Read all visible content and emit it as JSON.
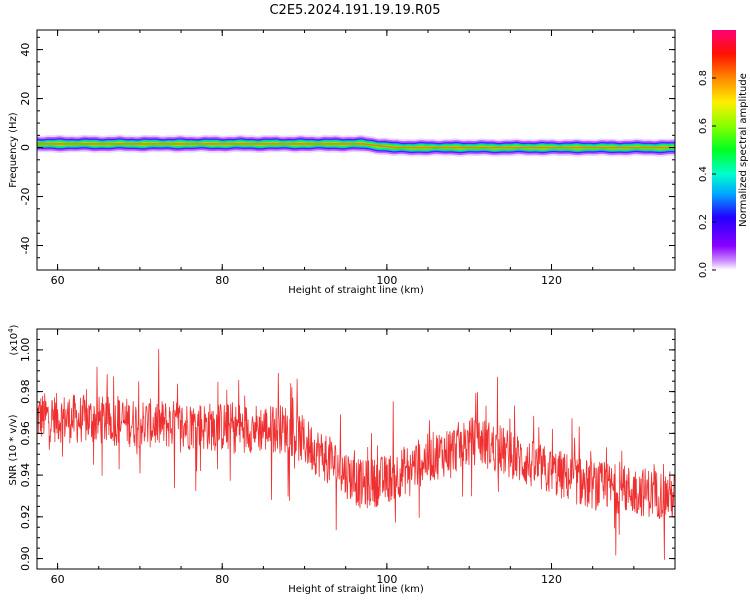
{
  "title": "C2E5.2024.191.19.19.R05",
  "colors": {
    "signal": "#f03030",
    "axis": "#000000"
  },
  "chart_data": [
    {
      "type": "heatmap",
      "xlabel": "Height of straight line (km)",
      "ylabel": "Frequency (Hz)",
      "xlim": [
        57.5,
        135
      ],
      "ylim": [
        -50,
        48
      ],
      "xticks": [
        60,
        80,
        100,
        120
      ],
      "yticks": [
        40,
        20,
        0,
        -20,
        -40
      ],
      "colorbar": {
        "label": "Normalized spectral amplitude",
        "range": [
          0,
          1
        ],
        "ticks": [
          "0.0",
          "0.2",
          "0.4",
          "0.6",
          "0.8"
        ],
        "colormap": "hsv-rainbow"
      },
      "band": {
        "center_hz": [
          {
            "x": 57.5,
            "y": 1.5
          },
          {
            "x": 97,
            "y": 1.5
          },
          {
            "x": 101,
            "y": 0
          },
          {
            "x": 135,
            "y": 0
          }
        ],
        "core_half_width_hz": 1.2,
        "outer_half_width_hz": 3.5,
        "peak_amplitude": 0.85
      }
    },
    {
      "type": "line",
      "xlabel": "Height of straight line (km)",
      "ylabel": "SNR (10 * v/v)",
      "ylabel_scale": "(x10",
      "ylabel_scale_exp": "4",
      "xlim": [
        57.5,
        135
      ],
      "ylim": [
        0.895,
        1.01
      ],
      "xticks": [
        60,
        80,
        100,
        120
      ],
      "yticks": [
        "0.90",
        "0.92",
        "0.94",
        "0.96",
        "0.98",
        "1.00"
      ],
      "series": [
        {
          "trend": [
            {
              "x": 57.5,
              "y": 0.968
            },
            {
              "x": 70,
              "y": 0.965
            },
            {
              "x": 80,
              "y": 0.963
            },
            {
              "x": 88,
              "y": 0.962
            },
            {
              "x": 92,
              "y": 0.95
            },
            {
              "x": 97,
              "y": 0.935
            },
            {
              "x": 100,
              "y": 0.938
            },
            {
              "x": 105,
              "y": 0.948
            },
            {
              "x": 111,
              "y": 0.957
            },
            {
              "x": 118,
              "y": 0.944
            },
            {
              "x": 125,
              "y": 0.935
            },
            {
              "x": 135,
              "y": 0.93
            }
          ],
          "noise_amplitude": 0.02,
          "approx_samples": 1500
        }
      ]
    }
  ]
}
